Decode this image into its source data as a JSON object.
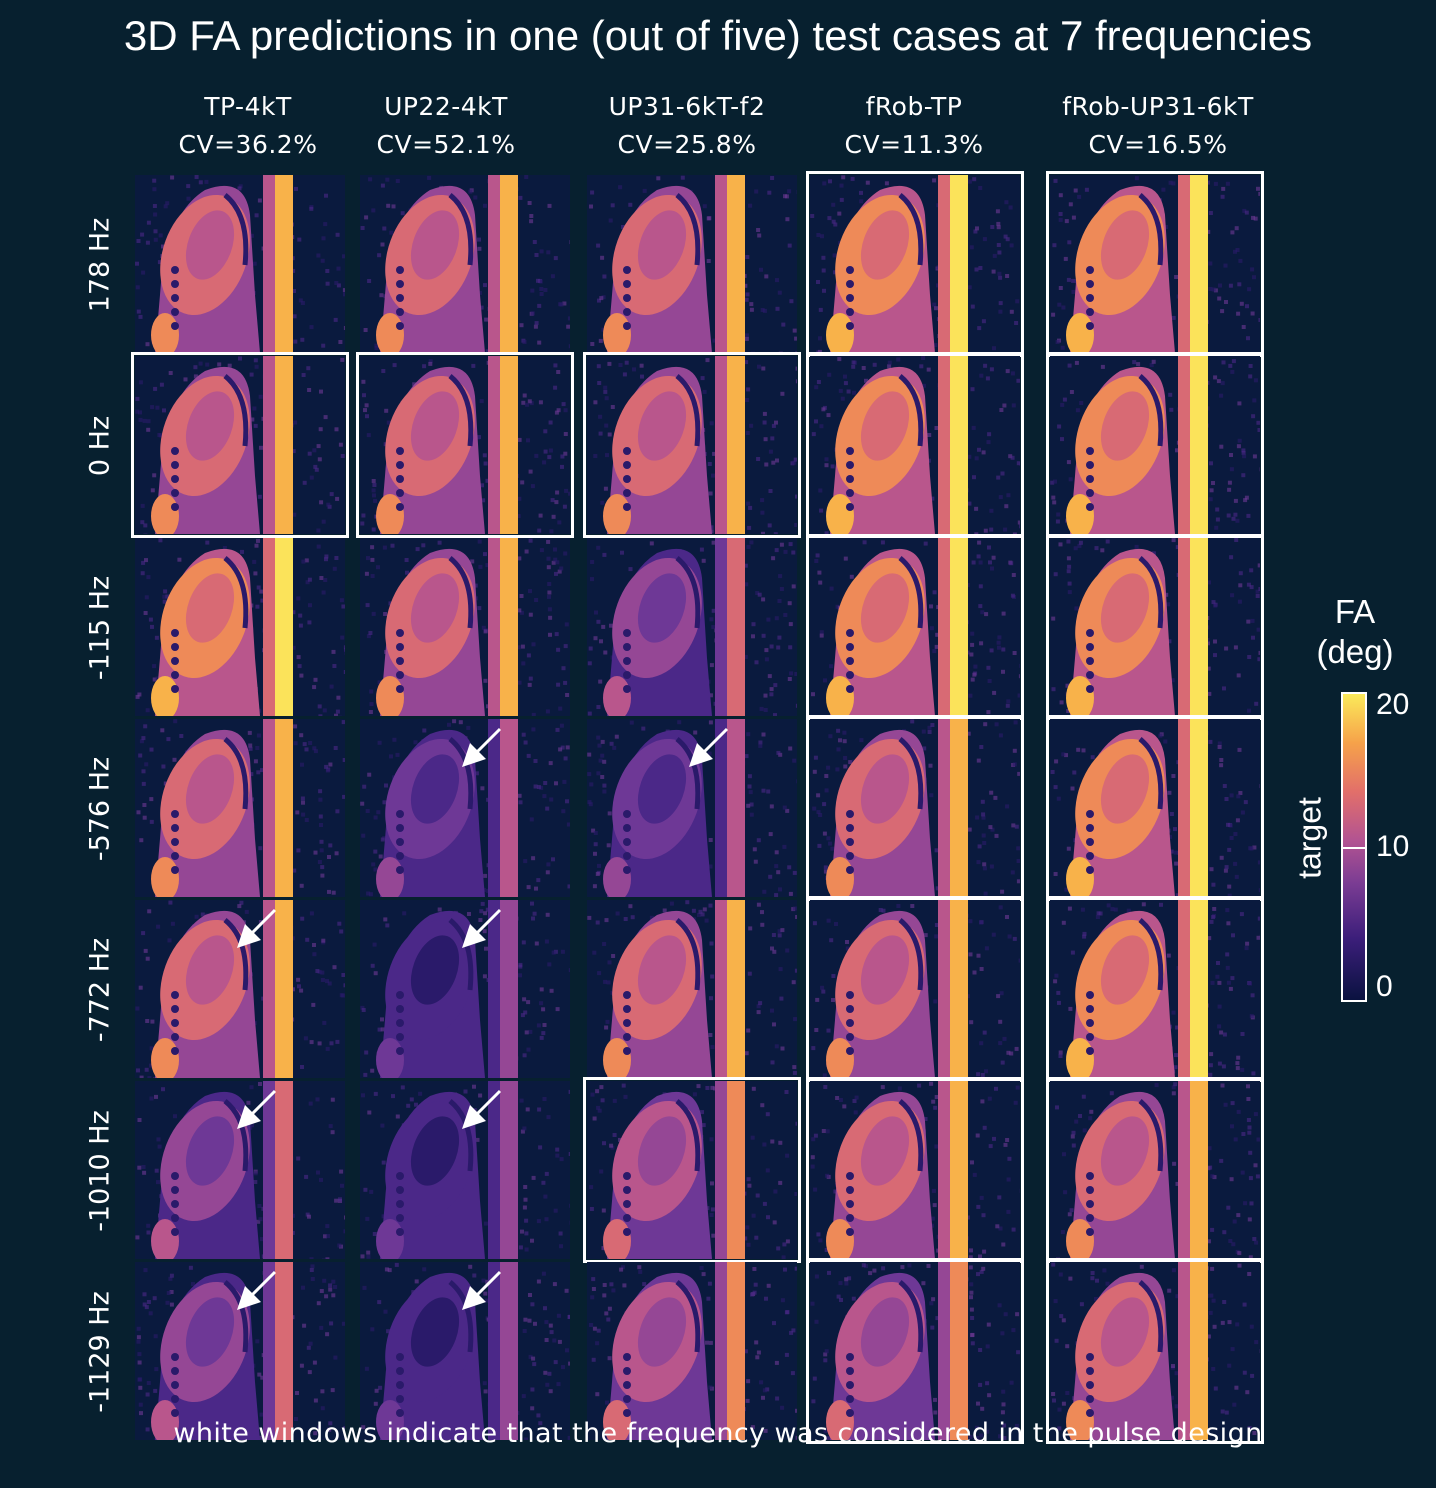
{
  "title": "3D FA predictions in one (out of five) test cases at 7 frequencies",
  "columns": [
    {
      "name": "TP-4kT",
      "cv": "CV=36.2%"
    },
    {
      "name": "UP22-4kT",
      "cv": "CV=52.1%"
    },
    {
      "name": "UP31-6kT-f2",
      "cv": "CV=25.8%"
    },
    {
      "name": "fRob-TP",
      "cv": "CV=11.3%"
    },
    {
      "name": "fRob-UP31-6kT",
      "cv": "CV=16.5%"
    }
  ],
  "rows": [
    {
      "label": "178 Hz",
      "designed": [
        false,
        false,
        false,
        true,
        true
      ],
      "arrows": [
        false,
        false,
        false,
        false,
        false
      ],
      "signal": [
        0.75,
        0.7,
        0.7,
        0.85,
        0.9
      ]
    },
    {
      "label": "0 Hz",
      "designed": [
        true,
        true,
        true,
        true,
        true
      ],
      "arrows": [
        false,
        false,
        false,
        false,
        false
      ],
      "signal": [
        0.8,
        0.72,
        0.7,
        0.85,
        0.9
      ]
    },
    {
      "label": "-115 Hz",
      "designed": [
        false,
        false,
        false,
        true,
        true
      ],
      "arrows": [
        false,
        false,
        false,
        false,
        false
      ],
      "signal": [
        0.85,
        0.78,
        0.55,
        0.85,
        0.9
      ]
    },
    {
      "label": "-576 Hz",
      "designed": [
        false,
        false,
        false,
        true,
        true
      ],
      "arrows": [
        false,
        true,
        true,
        false,
        false
      ],
      "signal": [
        0.8,
        0.35,
        0.4,
        0.75,
        0.85
      ]
    },
    {
      "label": "-772 Hz",
      "designed": [
        false,
        false,
        false,
        true,
        true
      ],
      "arrows": [
        true,
        true,
        false,
        false,
        false
      ],
      "signal": [
        0.7,
        0.3,
        0.7,
        0.7,
        0.85
      ]
    },
    {
      "label": "-1010 Hz",
      "designed": [
        false,
        false,
        true,
        true,
        true
      ],
      "arrows": [
        true,
        true,
        false,
        false,
        false
      ],
      "signal": [
        0.55,
        0.3,
        0.65,
        0.7,
        0.8
      ]
    },
    {
      "label": "-1129 Hz",
      "designed": [
        false,
        false,
        false,
        true,
        true
      ],
      "arrows": [
        true,
        true,
        false,
        false,
        false
      ],
      "signal": [
        0.45,
        0.3,
        0.65,
        0.65,
        0.8
      ]
    }
  ],
  "colorbar": {
    "title_line1": "FA",
    "title_line2": "(deg)",
    "ticks": [
      "20",
      "10",
      "0"
    ],
    "label": "target",
    "target_value": 10,
    "range": [
      0,
      20
    ]
  },
  "footer": "white windows indicate that the frequency was considered in the pulse design"
}
